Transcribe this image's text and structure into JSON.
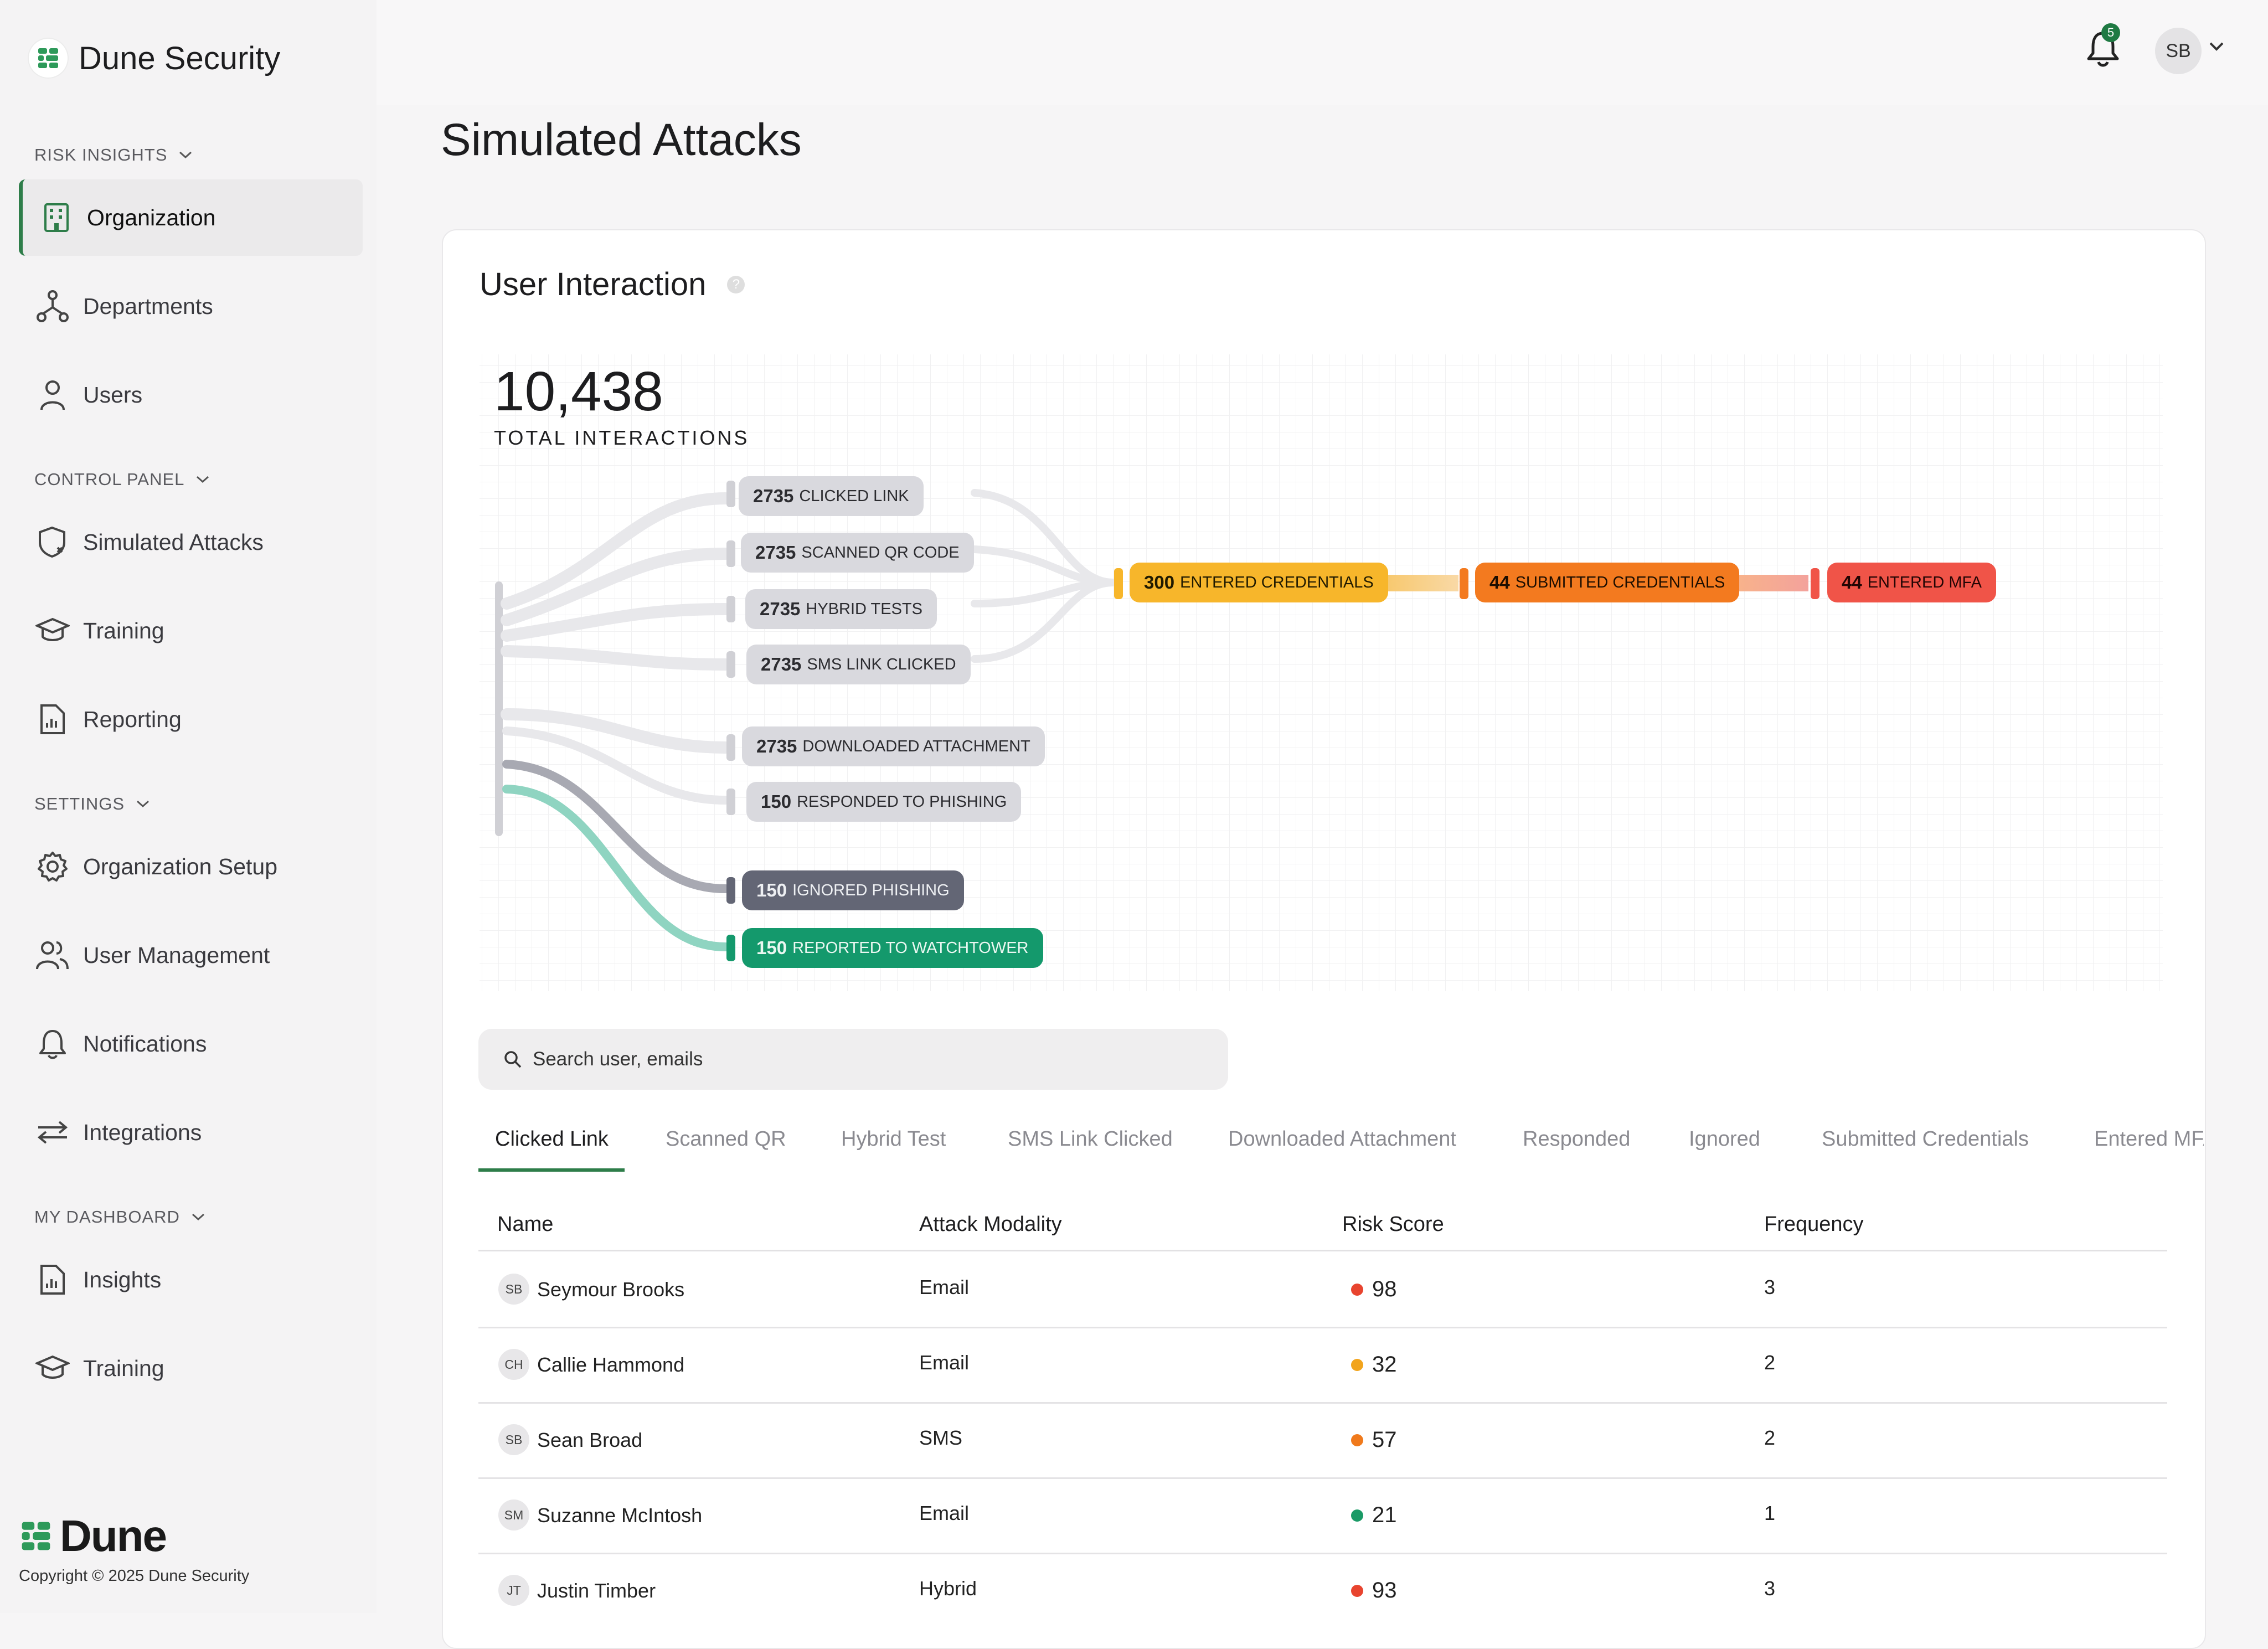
{
  "brand": {
    "name": "Dune Security",
    "footer_word": "Dune",
    "copyright": "Copyright © 2025 Dune Security"
  },
  "sidebar": {
    "sections": [
      {
        "title": "RISK INSIGHTS",
        "items": [
          "Organization",
          "Departments",
          "Users"
        ]
      },
      {
        "title": "CONTROL PANEL",
        "items": [
          "Simulated Attacks",
          "Training",
          "Reporting"
        ]
      },
      {
        "title": "SETTINGS",
        "items": [
          "Organization Setup",
          "User Management",
          "Notifications",
          "Integrations"
        ]
      },
      {
        "title": "MY DASHBOARD",
        "items": [
          "Insights",
          "Training"
        ]
      }
    ],
    "active_item": "Organization"
  },
  "topbar": {
    "notification_count": "5",
    "avatar_initials": "SB"
  },
  "page": {
    "title": "Simulated Attacks"
  },
  "interaction": {
    "title": "User Interaction",
    "help": "?",
    "total": "10,438",
    "total_label": "TOTAL INTERACTIONS",
    "stages": [
      {
        "count": "2735",
        "label": "CLICKED LINK"
      },
      {
        "count": "2735",
        "label": "SCANNED QR CODE"
      },
      {
        "count": "2735",
        "label": "HYBRID TESTS"
      },
      {
        "count": "2735",
        "label": "SMS LINK CLICKED"
      },
      {
        "count": "2735",
        "label": "DOWNLOADED ATTACHMENT"
      },
      {
        "count": "150",
        "label": "RESPONDED TO PHISHING"
      },
      {
        "count": "150",
        "label": "IGNORED PHISHING"
      },
      {
        "count": "150",
        "label": "REPORTED TO WATCHTOWER"
      }
    ],
    "funnel": [
      {
        "count": "300",
        "label": "ENTERED CREDENTIALS"
      },
      {
        "count": "44",
        "label": "SUBMITTED CREDENTIALS"
      },
      {
        "count": "44",
        "label": "ENTERED MFA"
      }
    ]
  },
  "search": {
    "placeholder": "Search user, emails"
  },
  "tabs": [
    "Clicked Link",
    "Scanned QR",
    "Hybrid Test",
    "SMS Link Clicked",
    "Downloaded Attachment",
    "Responded",
    "Ignored",
    "Submitted Credentials",
    "Entered MFA"
  ],
  "table": {
    "headers": [
      "Name",
      "Attack Modality",
      "Risk Score",
      "Frequency"
    ],
    "rows": [
      {
        "initials": "SB",
        "name": "Seymour Brooks",
        "modality": "Email",
        "score": "98",
        "level": "high",
        "frequency": "3"
      },
      {
        "initials": "CH",
        "name": "Callie Hammond",
        "modality": "Email",
        "score": "32",
        "level": "medium",
        "frequency": "2"
      },
      {
        "initials": "SB",
        "name": "Sean Broad",
        "modality": "SMS",
        "score": "57",
        "level": "elevated",
        "frequency": "2"
      },
      {
        "initials": "SM",
        "name": "Suzanne McIntosh",
        "modality": "Email",
        "score": "21",
        "level": "low",
        "frequency": "1"
      },
      {
        "initials": "JT",
        "name": "Justin Timber",
        "modality": "Hybrid",
        "score": "93",
        "level": "high",
        "frequency": "3"
      }
    ]
  },
  "colors": {
    "accent": "#2e7d49",
    "high": "#e8442f",
    "elevated": "#f07a1c",
    "medium": "#f2a41c",
    "low": "#1a9a66"
  }
}
